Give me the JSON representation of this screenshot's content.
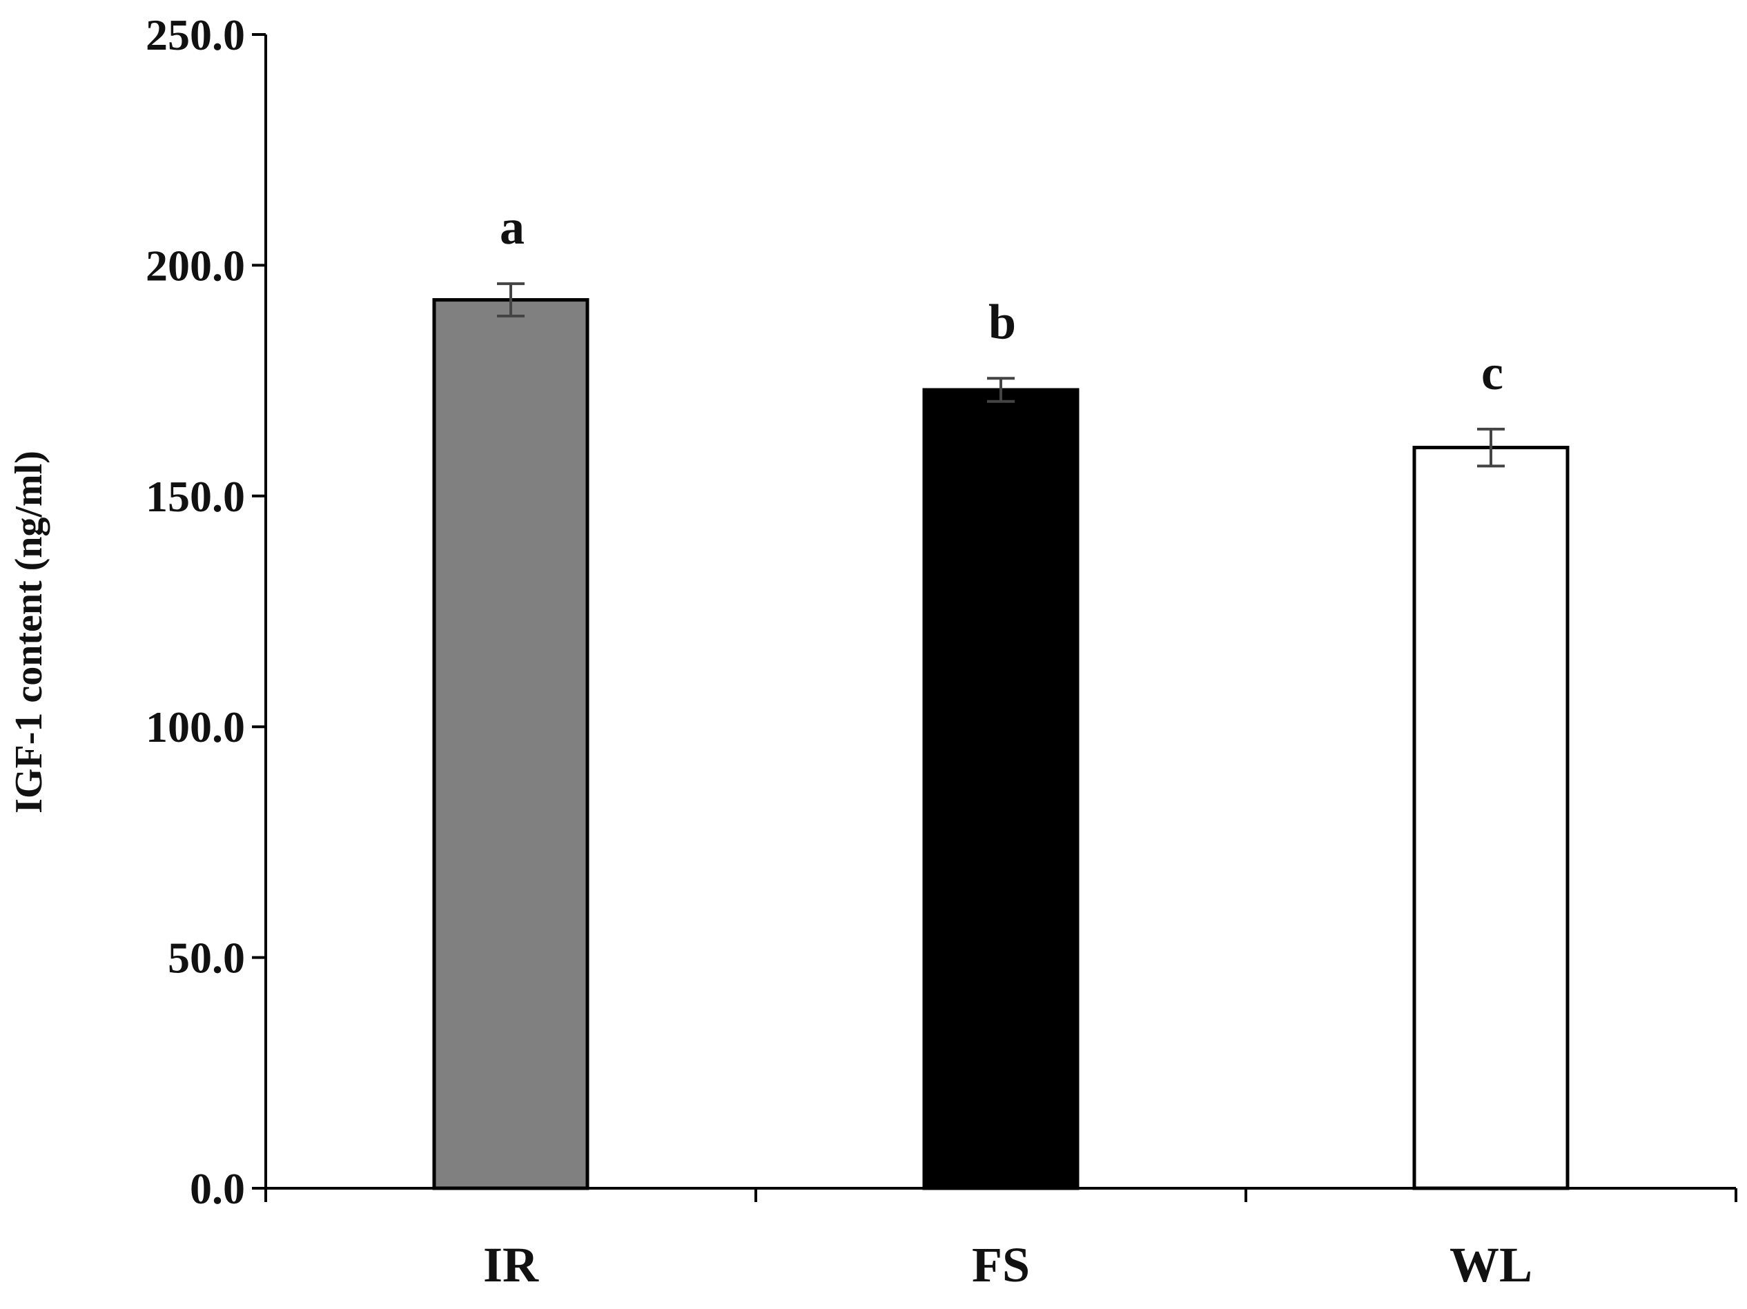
{
  "chart_data": {
    "type": "bar",
    "title": "",
    "xlabel": "",
    "ylabel": "IGF-1 content (ng/ml)",
    "ylim": [
      0,
      250
    ],
    "yticks": [
      0,
      50,
      100,
      150,
      200,
      250
    ],
    "ytick_labels": [
      "0.0",
      "50.0",
      "100.0",
      "150.0",
      "200.0",
      "250.0"
    ],
    "categories": [
      "IR",
      "FS",
      "WL"
    ],
    "values": [
      192.5,
      173.0,
      160.5
    ],
    "errors": [
      3.5,
      2.5,
      4.0
    ],
    "significance_labels": [
      "a",
      "b",
      "c"
    ],
    "bar_colors": [
      "#808080",
      "#000000",
      "#ffffff"
    ],
    "grid": false,
    "legend": "none"
  }
}
